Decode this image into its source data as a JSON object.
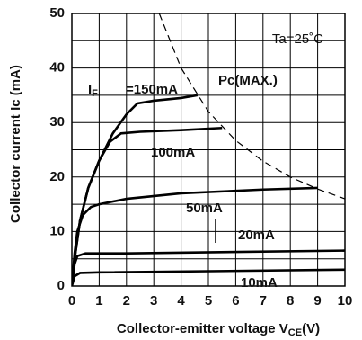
{
  "chart_data": {
    "type": "line",
    "ylabel": "Collector current Ic (mA)",
    "xlabel": {
      "main": "Collector-emitter voltage V",
      "sub": "CE",
      "unit": "(V)"
    },
    "annotation": "Ta=25˚C",
    "current_symbol": {
      "main": "I",
      "sub": "F"
    },
    "xlim": [
      0,
      10
    ],
    "ylim": [
      0,
      50
    ],
    "xticks": [
      0,
      1,
      2,
      3,
      4,
      5,
      6,
      7,
      8,
      9,
      10
    ],
    "yticks": [
      0,
      10,
      20,
      30,
      40,
      50
    ],
    "yticks_minor": [
      5,
      15,
      25,
      35,
      45
    ],
    "grid": true,
    "series": [
      {
        "name": "=150mA",
        "color": "#000",
        "x": [
          0,
          0.1,
          0.3,
          0.6,
          1,
          1.5,
          2,
          2.4,
          3,
          4,
          4.6
        ],
        "values": [
          0,
          5,
          12,
          18,
          23,
          28,
          31.5,
          33.5,
          34,
          34.5,
          35
        ]
      },
      {
        "name": "100mA",
        "color": "#000",
        "x": [
          0,
          0.1,
          0.3,
          0.6,
          1,
          1.4,
          1.8,
          2.5,
          4,
          5.5
        ],
        "values": [
          0,
          5,
          12,
          18,
          23,
          26.5,
          28,
          28.3,
          28.6,
          29
        ]
      },
      {
        "name": "50mA",
        "color": "#000",
        "x": [
          0,
          0.1,
          0.2,
          0.4,
          0.7,
          1,
          2,
          4,
          7,
          9
        ],
        "values": [
          0,
          6,
          10,
          13,
          14.5,
          15,
          16,
          17,
          17.7,
          18
        ]
      },
      {
        "name": "20mA",
        "color": "#000",
        "x": [
          0,
          0.1,
          0.2,
          0.5,
          2,
          10
        ],
        "values": [
          0,
          4,
          5.5,
          6,
          6,
          6.5
        ]
      },
      {
        "name": "10mA",
        "color": "#000",
        "x": [
          0,
          0.1,
          0.3,
          1,
          10
        ],
        "values": [
          0,
          1.8,
          2.4,
          2.5,
          3
        ]
      },
      {
        "name": "Pc(MAX.)",
        "color": "#000",
        "dashed": true,
        "x": [
          3.2,
          4,
          5,
          6,
          7,
          8,
          9,
          10
        ],
        "values": [
          50,
          40,
          32,
          26.7,
          22.9,
          20,
          17.8,
          16
        ]
      }
    ]
  }
}
